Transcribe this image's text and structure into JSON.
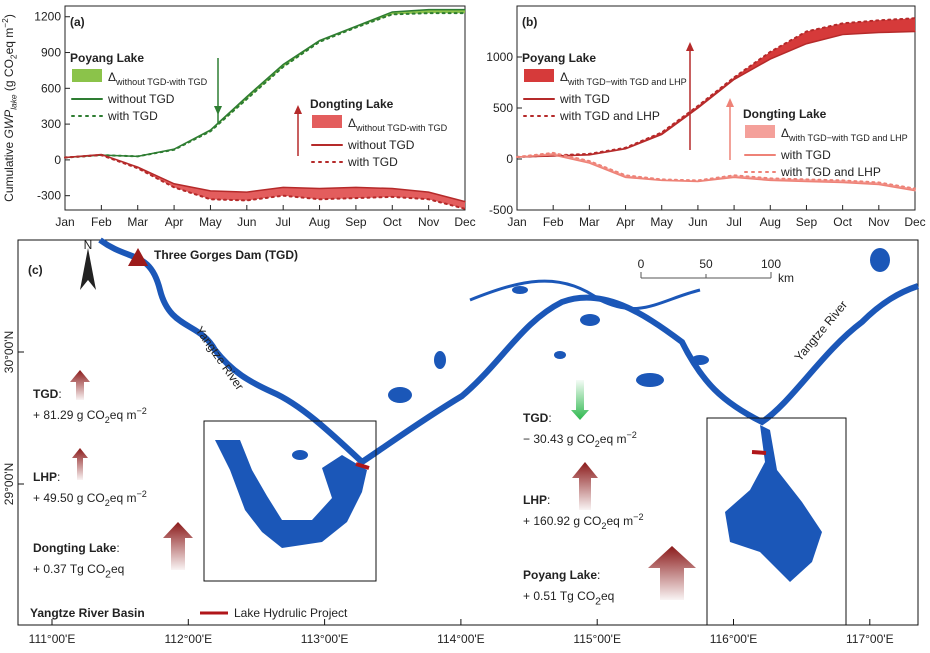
{
  "chart_data": [
    {
      "type": "line",
      "panel_label": "(a)",
      "ylabel": [
        "Cumulative ",
        "GWP",
        "lake",
        " (g CO",
        "2",
        "eq m",
        "−2",
        ")"
      ],
      "categories": [
        "Jan",
        "Feb",
        "Mar",
        "Apr",
        "May",
        "Jun",
        "Jul",
        "Aug",
        "Sep",
        "Oct",
        "Nov",
        "Dec"
      ],
      "ylim": [
        -420,
        1290
      ],
      "yticks": [
        -300,
        0,
        300,
        600,
        900,
        1200
      ],
      "groups": [
        {
          "title": "Poyang Lake",
          "band": {
            "name": [
              "Δ",
              "without TGD-with TGD"
            ],
            "color": "#8bc34a"
          },
          "series": [
            {
              "name": "without TGD",
              "color": "#2e7d32",
              "line_style": "solid",
              "values": [
                20,
                40,
                30,
                90,
                250,
                530,
                800,
                1000,
                1120,
                1240,
                1260,
                1260
              ]
            },
            {
              "name": "with TGD",
              "color": "#2e7d32",
              "line_style": "dotted",
              "values": [
                20,
                40,
                30,
                85,
                240,
                510,
                780,
                990,
                1110,
                1220,
                1230,
                1230
              ]
            }
          ]
        },
        {
          "title": "Dongting Lake",
          "band": {
            "name": [
              "Δ",
              "without TGD-with TGD"
            ],
            "color": "#e35d5d"
          },
          "series": [
            {
              "name": "without TGD",
              "color": "#b52a2a",
              "line_style": "solid",
              "values": [
                20,
                45,
                -60,
                -200,
                -260,
                -270,
                -230,
                -240,
                -230,
                -240,
                -270,
                -350
              ]
            },
            {
              "name": "with TGD",
              "color": "#b52a2a",
              "line_style": "dotted",
              "values": [
                20,
                40,
                -70,
                -230,
                -330,
                -340,
                -300,
                -330,
                -320,
                -310,
                -330,
                -410
              ]
            }
          ]
        }
      ]
    },
    {
      "type": "line",
      "panel_label": "(b)",
      "categories": [
        "Jan",
        "Feb",
        "Mar",
        "Apr",
        "May",
        "Jun",
        "Jul",
        "Aug",
        "Sep",
        "Oct",
        "Nov",
        "Dec"
      ],
      "ylim": [
        -500,
        1500
      ],
      "yticks": [
        -500,
        0,
        500,
        1000
      ],
      "groups": [
        {
          "title": "Poyang Lake",
          "band": {
            "name": [
              "Δ",
              "with TGD−with TGD and LHP"
            ],
            "color": "#d63a3a"
          },
          "series": [
            {
              "name": "with TGD",
              "color": "#b52a2a",
              "line_style": "solid",
              "values": [
                20,
                30,
                40,
                100,
                240,
                500,
                780,
                980,
                1130,
                1220,
                1240,
                1250
              ]
            },
            {
              "name": "with TGD and LHP",
              "color": "#b52a2a",
              "line_style": "dotted",
              "values": [
                20,
                35,
                50,
                110,
                260,
                520,
                800,
                1050,
                1250,
                1330,
                1360,
                1380
              ]
            }
          ]
        },
        {
          "title": "Dongting Lake",
          "band": {
            "name": [
              "Δ",
              "with TGD−with TGD and LHP"
            ],
            "color": "#f4a09a"
          },
          "series": [
            {
              "name": "with TGD",
              "color": "#ee8277",
              "line_style": "solid",
              "values": [
                20,
                40,
                -40,
                -180,
                -210,
                -220,
                -180,
                -210,
                -220,
                -230,
                -250,
                -310
              ]
            },
            {
              "name": "with TGD and LHP",
              "color": "#ee8277",
              "line_style": "dotted",
              "values": [
                20,
                60,
                -20,
                -160,
                -200,
                -210,
                -160,
                -190,
                -200,
                -210,
                -230,
                -290
              ]
            }
          ]
        }
      ]
    }
  ],
  "map": {
    "panel_label": "(c)",
    "north": "N",
    "dam_label": "Three Gorges Dam (TGD)",
    "scale": {
      "ticks": [
        "0",
        "50",
        "100"
      ],
      "unit": "km"
    },
    "rivers": [
      "Yangtze River",
      "Yangtze River"
    ],
    "lat_labels": [
      "30°00'N",
      "29°00'N"
    ],
    "lon_labels": [
      "111°00'E",
      "112°00'E",
      "113°00'E",
      "114°00'E",
      "115°00'E",
      "116°00'E",
      "117°00'E"
    ],
    "stats": [
      {
        "label": "TGD",
        "sep": ":",
        "value": [
          "+ 81.29 g CO",
          "2",
          "eq m",
          "−2"
        ]
      },
      {
        "label": "LHP",
        "sep": ":",
        "value": [
          "+ 49.50 g CO",
          "2",
          "eq m",
          "−2"
        ]
      },
      {
        "label": "Dongting Lake",
        "sep": ":",
        "value": [
          "+ 0.37 Tg CO",
          "2",
          "eq"
        ]
      },
      {
        "label": "TGD",
        "sep": ":",
        "value": [
          "− 30.43 g CO",
          "2",
          "eq m",
          "−2"
        ]
      },
      {
        "label": "LHP",
        "sep": ":",
        "value": [
          "+ 160.92 g CO",
          "2",
          "eq m",
          "−2"
        ]
      },
      {
        "label": "Poyang Lake",
        "sep": ":",
        "value": [
          "+ 0.51 Tg CO",
          "2",
          "eq"
        ]
      }
    ],
    "basin_title": "Yangtze River Basin",
    "legend_label": "Lake Hydrulic Project"
  }
}
